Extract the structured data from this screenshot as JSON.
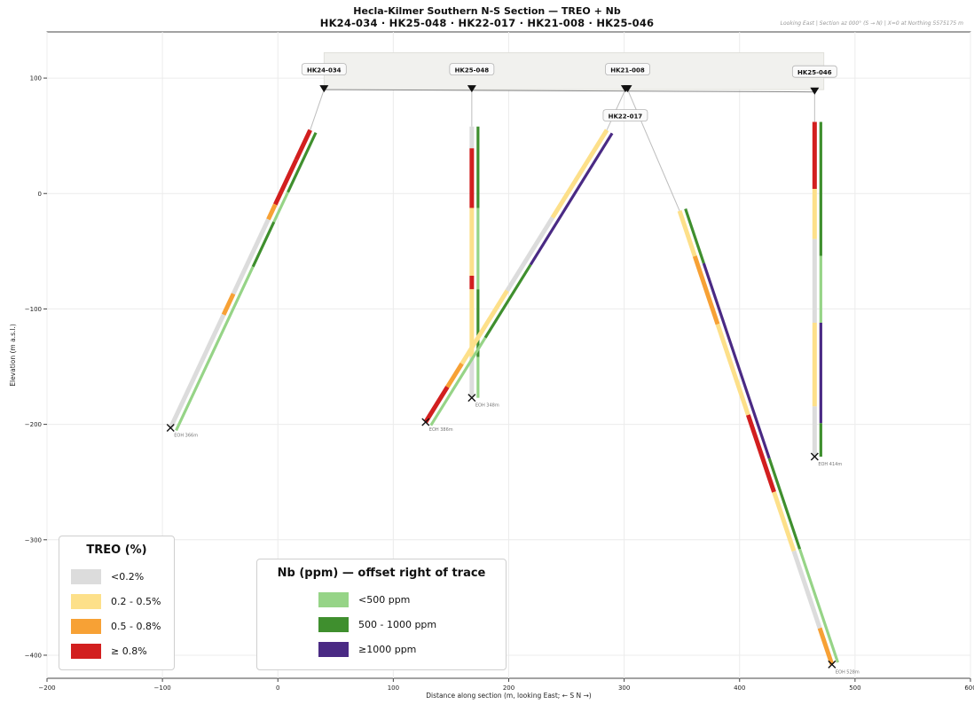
{
  "title": "Hecla-Kilmer Southern N-S Section — TREO + Nb",
  "subtitle": "HK24-034 · HK25-048 · HK22-017 · HK21-008 · HK25-046",
  "note": "Looking East  |  Section az 000° (S → N)  |  X=0 at Northing 5575175 m",
  "chart_data": {
    "type": "scatter",
    "title": "Hecla-Kilmer Southern N-S Section — TREO + Nb",
    "xlabel": "Distance along section (m, looking East;  ← S    N →)",
    "ylabel": "Elevation (m a.s.l.)",
    "xlim": [
      -200,
      600
    ],
    "ylim": [
      -420,
      140
    ],
    "xticks": [
      -200,
      -100,
      0,
      100,
      200,
      300,
      400,
      500,
      600
    ],
    "yticks": [
      100,
      0,
      -100,
      -200,
      -300,
      -400
    ],
    "grid": true,
    "colors": {
      "treo_low": "#dcdcdc",
      "treo_02_05": "#fde08a",
      "treo_05_08": "#f7a135",
      "treo_high": "#d21f1f",
      "nb_low": "#96d487",
      "nb_mid": "#3f8f2e",
      "nb_high": "#4a2a84",
      "collar_band": "#f1f1ee"
    },
    "collars": [
      {
        "hole": "HK24-034",
        "x": 40,
        "y": 90
      },
      {
        "hole": "HK25-048",
        "x": 168,
        "y": 90
      },
      {
        "hole": "HK21-008",
        "x": 303,
        "y": 90
      },
      {
        "hole": "HK22-017",
        "x": 301,
        "y": 90
      },
      {
        "hole": "HK25-046",
        "x": 465,
        "y": 88
      }
    ],
    "holes": [
      {
        "hole": "HK24-034",
        "collar": [
          40,
          90
        ],
        "trace_top": [
          28,
          55
        ],
        "eoh": [
          -93,
          -203
        ],
        "eoh_label": "EOH 366m",
        "treo": [
          [
            0.0,
            0.1,
            "treo_high"
          ],
          [
            0.1,
            0.25,
            "treo_high"
          ],
          [
            0.25,
            0.3,
            "treo_05_08"
          ],
          [
            0.3,
            0.55,
            "treo_low"
          ],
          [
            0.55,
            0.62,
            "treo_05_08"
          ],
          [
            0.62,
            1.0,
            "treo_low"
          ]
        ],
        "nb": [
          [
            0.0,
            0.2,
            "nb_mid"
          ],
          [
            0.2,
            0.3,
            "nb_low"
          ],
          [
            0.3,
            0.45,
            "nb_mid"
          ],
          [
            0.45,
            1.0,
            "nb_low"
          ]
        ]
      },
      {
        "hole": "HK25-048",
        "collar": [
          168,
          90
        ],
        "trace_top": [
          168,
          58
        ],
        "eoh": [
          168,
          -177
        ],
        "eoh_label": "EOH 348m",
        "treo": [
          [
            0.0,
            0.08,
            "treo_low"
          ],
          [
            0.08,
            0.3,
            "treo_high"
          ],
          [
            0.3,
            0.55,
            "treo_02_05"
          ],
          [
            0.55,
            0.6,
            "treo_high"
          ],
          [
            0.6,
            0.85,
            "treo_02_05"
          ],
          [
            0.85,
            1.0,
            "treo_low"
          ]
        ],
        "nb": [
          [
            0.0,
            0.3,
            "nb_mid"
          ],
          [
            0.3,
            0.6,
            "nb_low"
          ],
          [
            0.6,
            0.85,
            "nb_mid"
          ],
          [
            0.85,
            1.0,
            "nb_low"
          ]
        ]
      },
      {
        "hole": "HK22-017",
        "collar": [
          301,
          90
        ],
        "trace_top": [
          285,
          55
        ],
        "eoh": [
          128,
          -198
        ],
        "eoh_label": "EOH 386m",
        "treo": [
          [
            0.0,
            0.3,
            "treo_02_05"
          ],
          [
            0.3,
            0.55,
            "treo_low"
          ],
          [
            0.55,
            0.8,
            "treo_02_05"
          ],
          [
            0.8,
            0.88,
            "treo_05_08"
          ],
          [
            0.88,
            1.0,
            "treo_high"
          ]
        ],
        "nb": [
          [
            0.0,
            0.45,
            "nb_high"
          ],
          [
            0.45,
            0.7,
            "nb_mid"
          ],
          [
            0.7,
            1.0,
            "nb_low"
          ]
        ]
      },
      {
        "hole": "HK21-008",
        "collar": [
          303,
          90
        ],
        "trace_top": [
          348,
          -15
        ],
        "eoh": [
          480,
          -408
        ],
        "eoh_label": "EOH 528m",
        "treo": [
          [
            0.0,
            0.1,
            "treo_02_05"
          ],
          [
            0.1,
            0.25,
            "treo_05_08"
          ],
          [
            0.25,
            0.45,
            "treo_02_05"
          ],
          [
            0.45,
            0.62,
            "treo_high"
          ],
          [
            0.62,
            0.75,
            "treo_02_05"
          ],
          [
            0.75,
            0.92,
            "treo_low"
          ],
          [
            0.92,
            1.0,
            "treo_05_08"
          ]
        ],
        "nb": [
          [
            0.0,
            0.12,
            "nb_mid"
          ],
          [
            0.12,
            0.55,
            "nb_high"
          ],
          [
            0.55,
            0.75,
            "nb_mid"
          ],
          [
            0.75,
            1.0,
            "nb_low"
          ]
        ]
      },
      {
        "hole": "HK25-046",
        "collar": [
          465,
          88
        ],
        "trace_top": [
          465,
          62
        ],
        "eoh": [
          465,
          -228
        ],
        "eoh_label": "EOH 414m",
        "treo": [
          [
            0.0,
            0.2,
            "treo_high"
          ],
          [
            0.2,
            0.35,
            "treo_02_05"
          ],
          [
            0.35,
            0.6,
            "treo_low"
          ],
          [
            0.6,
            0.85,
            "treo_02_05"
          ],
          [
            0.85,
            1.0,
            "treo_low"
          ]
        ],
        "nb": [
          [
            0.0,
            0.4,
            "nb_mid"
          ],
          [
            0.4,
            0.6,
            "nb_low"
          ],
          [
            0.6,
            0.9,
            "nb_high"
          ],
          [
            0.9,
            1.0,
            "nb_mid"
          ]
        ]
      }
    ]
  },
  "legend_treo": {
    "title": "TREO (%)",
    "items": [
      {
        "label": "<0.2%",
        "color": "#dcdcdc"
      },
      {
        "label": "0.2 - 0.5%",
        "color": "#fde08a"
      },
      {
        "label": "0.5 - 0.8%",
        "color": "#f7a135"
      },
      {
        "label": "≥ 0.8%",
        "color": "#d21f1f"
      }
    ]
  },
  "legend_nb": {
    "title": "Nb (ppm) — offset right of trace",
    "items": [
      {
        "label": "<500 ppm",
        "color": "#96d487"
      },
      {
        "label": "500 - 1000 ppm",
        "color": "#3f8f2e"
      },
      {
        "label": "≥1000 ppm",
        "color": "#4a2a84"
      }
    ]
  }
}
